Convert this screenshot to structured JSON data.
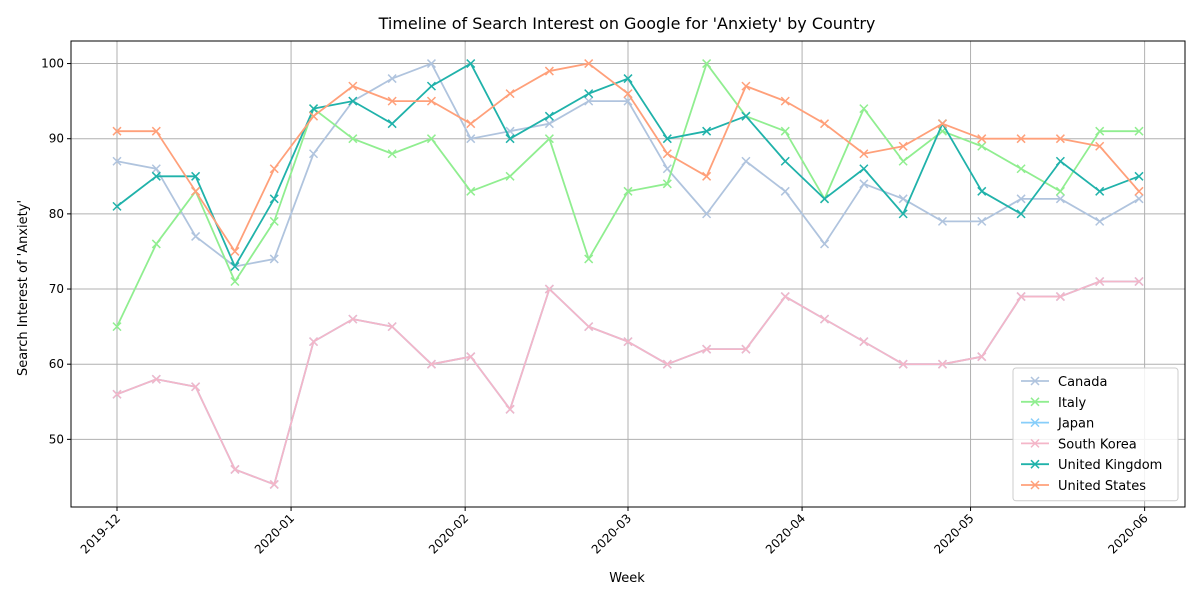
{
  "chart_data": {
    "type": "line",
    "title": "Timeline of Search Interest on Google for 'Anxiety' by Country",
    "xlabel": "Week",
    "ylabel": "Search Interest of 'Anxiety'",
    "x": [
      "2019-12-01",
      "2019-12-08",
      "2019-12-15",
      "2019-12-22",
      "2019-12-29",
      "2020-01-05",
      "2020-01-12",
      "2020-01-19",
      "2020-01-26",
      "2020-02-02",
      "2020-02-09",
      "2020-02-16",
      "2020-02-23",
      "2020-03-01",
      "2020-03-08",
      "2020-03-15",
      "2020-03-22",
      "2020-03-29",
      "2020-04-05",
      "2020-04-12",
      "2020-04-19",
      "2020-04-26",
      "2020-05-03",
      "2020-05-10",
      "2020-05-17",
      "2020-05-24",
      "2020-05-31"
    ],
    "xticks": [
      "2019-12",
      "2020-01",
      "2020-02",
      "2020-03",
      "2020-04",
      "2020-05",
      "2020-06"
    ],
    "xtick_dates": [
      "2019-12-01",
      "2020-01-01",
      "2020-02-01",
      "2020-03-01",
      "2020-04-01",
      "2020-05-01",
      "2020-06-01"
    ],
    "ylim": [
      41,
      103
    ],
    "yticks": [
      50,
      60,
      70,
      80,
      90,
      100
    ],
    "grid": true,
    "legend_position": "lower right",
    "marker": "x",
    "series": [
      {
        "name": "Canada",
        "color": "#b0c4de",
        "values": [
          87,
          86,
          77,
          73,
          74,
          88,
          95,
          98,
          100,
          90,
          91,
          92,
          95,
          95,
          86,
          80,
          87,
          83,
          76,
          84,
          82,
          79,
          79,
          82,
          82,
          79,
          82
        ]
      },
      {
        "name": "Italy",
        "color": "#90ee90",
        "values": [
          65,
          76,
          83,
          71,
          79,
          94,
          90,
          88,
          90,
          83,
          85,
          90,
          74,
          83,
          84,
          100,
          93,
          91,
          82,
          94,
          87,
          91,
          89,
          86,
          83,
          91,
          91
        ]
      },
      {
        "name": "Japan",
        "color": "#87cefa",
        "values": [
          56,
          58,
          57,
          46,
          44,
          63,
          66,
          65,
          60,
          61,
          54,
          70,
          65,
          63,
          60,
          62,
          62,
          69,
          66,
          63,
          60,
          60,
          61,
          69,
          69,
          71,
          71
        ]
      },
      {
        "name": "South Korea",
        "color": "#f4b6c8",
        "values": [
          56,
          58,
          57,
          46,
          44,
          63,
          66,
          65,
          60,
          61,
          54,
          70,
          65,
          63,
          60,
          62,
          62,
          69,
          66,
          63,
          60,
          60,
          61,
          69,
          69,
          71,
          71
        ]
      },
      {
        "name": "United Kingdom",
        "color": "#20b2aa",
        "values": [
          81,
          85,
          85,
          73,
          82,
          94,
          95,
          92,
          97,
          100,
          90,
          93,
          96,
          98,
          90,
          91,
          93,
          87,
          82,
          86,
          80,
          92,
          83,
          80,
          87,
          83,
          85
        ]
      },
      {
        "name": "United States",
        "color": "#ffa07a",
        "values": [
          91,
          91,
          83,
          75,
          86,
          93,
          97,
          95,
          95,
          92,
          96,
          99,
          100,
          96,
          88,
          85,
          97,
          95,
          92,
          88,
          89,
          92,
          90,
          90,
          90,
          89,
          83
        ]
      }
    ]
  }
}
